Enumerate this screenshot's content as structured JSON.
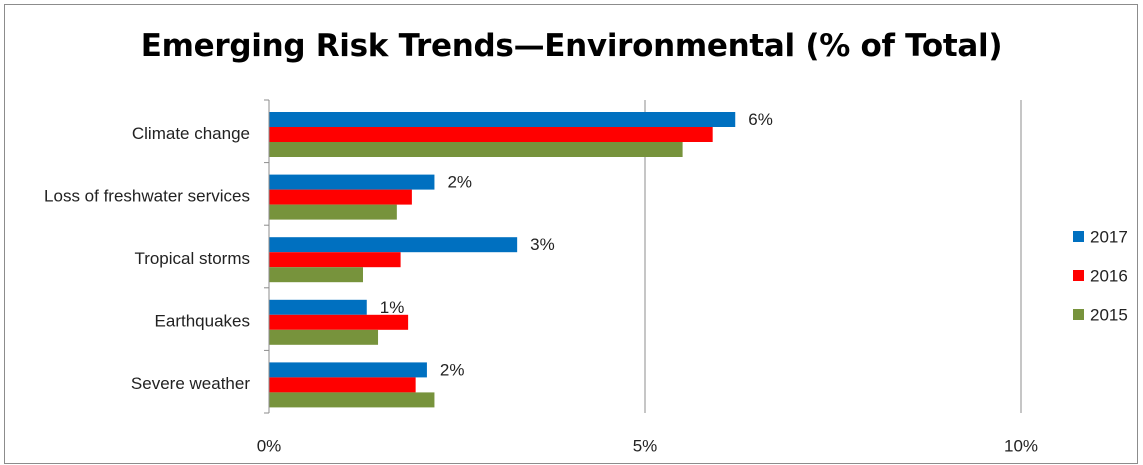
{
  "chart_data": {
    "type": "bar",
    "orientation": "horizontal",
    "title": "Emerging Risk Trends—Environmental (% of Total)",
    "xlabel": "",
    "ylabel": "",
    "xlim": [
      0,
      10
    ],
    "ticks": [
      0,
      5,
      10
    ],
    "tick_labels": [
      "0%",
      "5%",
      "10%"
    ],
    "grid": true,
    "legend_position": "right",
    "categories": [
      "Climate change",
      "Loss of freshwater services",
      "Tropical storms",
      "Earthquakes",
      "Severe weather"
    ],
    "series": [
      {
        "name": "2017",
        "color": "#0070C0",
        "values": [
          6.2,
          2.2,
          3.3,
          1.3,
          2.1
        ],
        "labels": [
          "6%",
          "2%",
          "3%",
          "1%",
          "2%"
        ]
      },
      {
        "name": "2016",
        "color": "#FF0000",
        "values": [
          5.9,
          1.9,
          1.75,
          1.85,
          1.95
        ]
      },
      {
        "name": "2015",
        "color": "#77933C",
        "values": [
          5.5,
          1.7,
          1.25,
          1.45,
          2.2
        ]
      }
    ]
  }
}
